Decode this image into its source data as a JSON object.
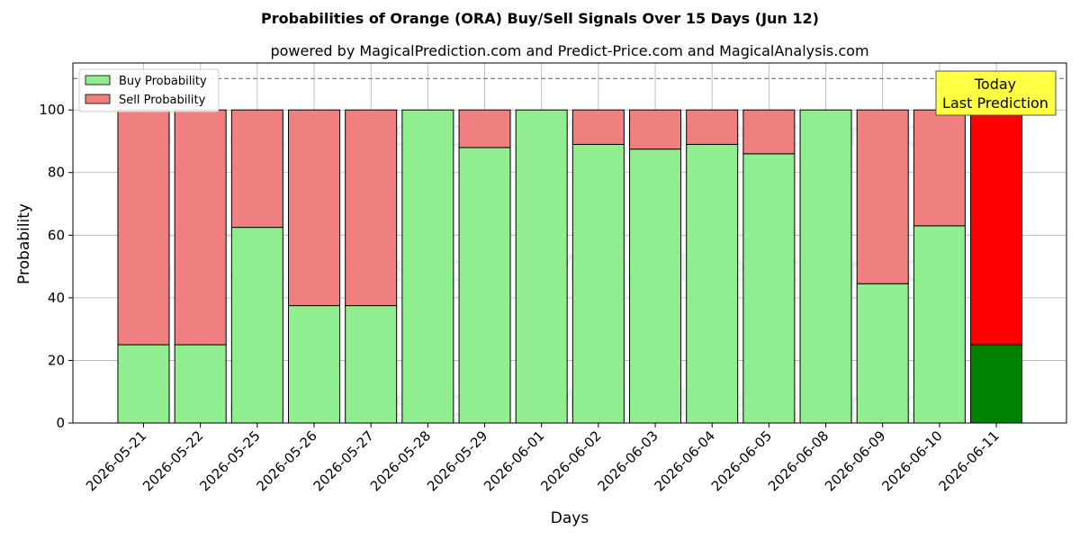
{
  "chart_data": {
    "type": "bar",
    "stacked": true,
    "title": "Probabilities of Orange (ORA) Buy/Sell Signals Over 15 Days (Jun 12)",
    "subtitle": "powered by MagicalPrediction.com and Predict-Price.com and MagicalAnalysis.com",
    "xlabel": "Days",
    "ylabel": "Probability",
    "ylim": [
      0,
      115
    ],
    "yticks": [
      0,
      20,
      40,
      60,
      80,
      100
    ],
    "grid": true,
    "legend_position": "top-left",
    "categories": [
      "2026-05-21",
      "2026-05-22",
      "2026-05-25",
      "2026-05-26",
      "2026-05-27",
      "2026-05-28",
      "2026-05-29",
      "2026-06-01",
      "2026-06-02",
      "2026-06-03",
      "2026-06-04",
      "2026-06-05",
      "2026-06-08",
      "2026-06-09",
      "2026-06-10",
      "2026-06-11"
    ],
    "series": [
      {
        "name": "Buy Probability",
        "color": "#90ee90",
        "values": [
          25,
          25,
          62.5,
          37.5,
          37.5,
          100,
          88,
          100,
          89,
          87.5,
          89,
          86,
          100,
          44.5,
          63,
          25
        ]
      },
      {
        "name": "Sell Probability",
        "color": "#f08080",
        "values": [
          75,
          75,
          37.5,
          62.5,
          62.5,
          0,
          12,
          0,
          11,
          12.5,
          11,
          14,
          0,
          55.5,
          37,
          75
        ]
      }
    ],
    "highlight": {
      "index": 15,
      "buy_color": "#008000",
      "sell_color": "#ff0000"
    },
    "reference_line": {
      "y": 110,
      "style": "dashed",
      "color": "#808080"
    },
    "annotation": {
      "lines": [
        "Today",
        "Last Prediction"
      ],
      "background": "#ffff44"
    },
    "watermarks": [
      "MagicalAnalysis.com",
      "MagicalPrediction.com"
    ]
  }
}
